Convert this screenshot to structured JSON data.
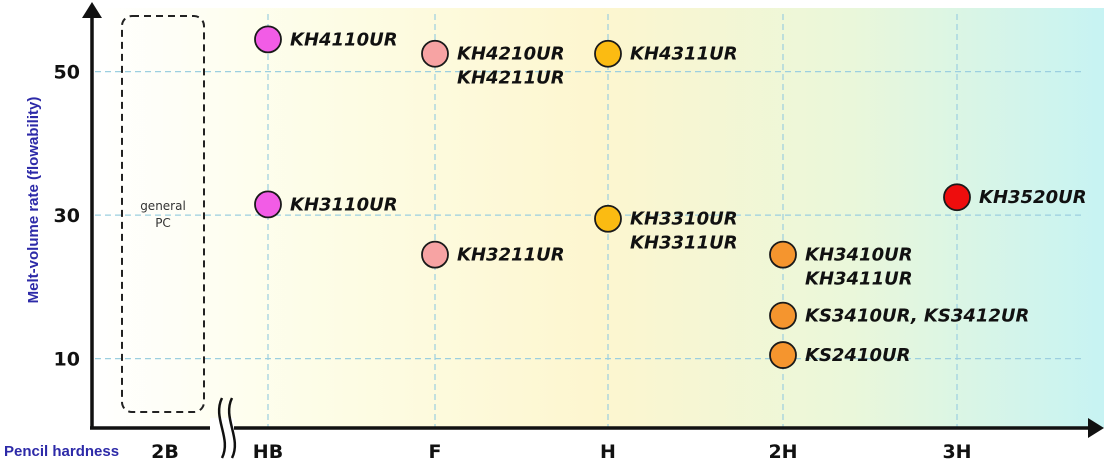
{
  "chart_data": {
    "type": "scatter",
    "xlabel": "Pencil hardness",
    "ylabel": "Melt-volume rate (flowability)",
    "x_categories": [
      "2B",
      "HB",
      "F",
      "H",
      "2H",
      "3H"
    ],
    "y_ticks": [
      10,
      30,
      50
    ],
    "ylim": [
      0,
      57
    ],
    "grid": true,
    "note_box": [
      "general",
      "PC"
    ],
    "points": [
      {
        "x": "HB",
        "y": 54.5,
        "color": "#f25ce6",
        "labels": [
          "KH4110UR"
        ]
      },
      {
        "x": "F",
        "y": 52.5,
        "color": "#f7a3a3",
        "labels": [
          "KH4210UR",
          "KH4211UR"
        ]
      },
      {
        "x": "H",
        "y": 52.5,
        "color": "#fbbb12",
        "labels": [
          "KH4311UR"
        ]
      },
      {
        "x": "HB",
        "y": 31.5,
        "color": "#f25ce6",
        "labels": [
          "KH3110UR"
        ]
      },
      {
        "x": "F",
        "y": 24.5,
        "color": "#f7a3a3",
        "labels": [
          "KH3211UR"
        ]
      },
      {
        "x": "H",
        "y": 29.5,
        "color": "#fbbb12",
        "labels": [
          "KH3310UR",
          "KH3311UR"
        ]
      },
      {
        "x": "2H",
        "y": 24.5,
        "color": "#f5952e",
        "labels": [
          "KH3410UR",
          "KH3411UR"
        ]
      },
      {
        "x": "2H",
        "y": 16.0,
        "color": "#f5952e",
        "labels": [
          "KS3410UR, KS3412UR"
        ]
      },
      {
        "x": "2H",
        "y": 10.5,
        "color": "#f5952e",
        "labels": [
          "KS2410UR"
        ]
      },
      {
        "x": "3H",
        "y": 32.5,
        "color": "#ee0d0d",
        "labels": [
          "KH3520UR"
        ]
      }
    ]
  }
}
